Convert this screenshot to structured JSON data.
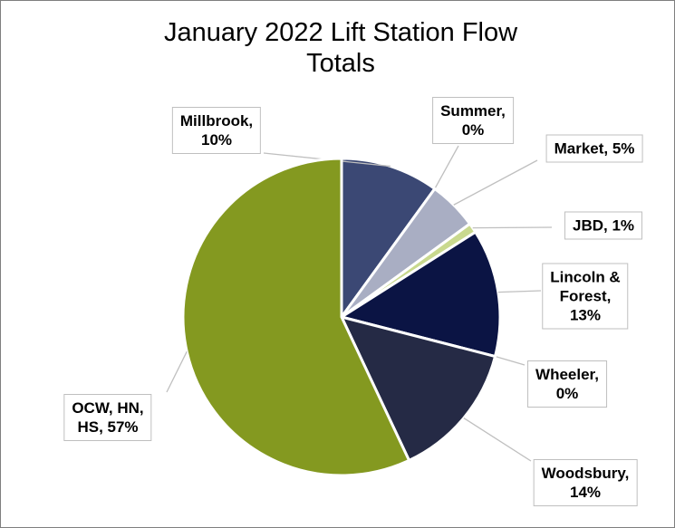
{
  "chart_data": {
    "type": "pie",
    "title": "January 2022 Lift Station Flow Totals",
    "categories": [
      "Millbrook",
      "Summer",
      "Market",
      "JBD",
      "Lincoln & Forest",
      "Wheeler",
      "Woodsbury",
      "OCW, HN, HS"
    ],
    "values": [
      10,
      0,
      5,
      1,
      13,
      0,
      14,
      57
    ],
    "labels": [
      [
        "Millbrook,",
        "10%"
      ],
      [
        "Summer,",
        "0%"
      ],
      [
        "Market, 5%"
      ],
      [
        "JBD, 1%"
      ],
      [
        "Lincoln &",
        "Forest,",
        "13%"
      ],
      [
        "Wheeler,",
        "0%"
      ],
      [
        "Woodsbury,",
        "14%"
      ],
      [
        "OCW, HN,",
        "HS, 57%"
      ]
    ],
    "colors": [
      "#3b4874",
      "#5a6691",
      "#a9aec3",
      "#c9d98e",
      "#0b1444",
      "#1a2040",
      "#252a45",
      "#849920"
    ]
  }
}
